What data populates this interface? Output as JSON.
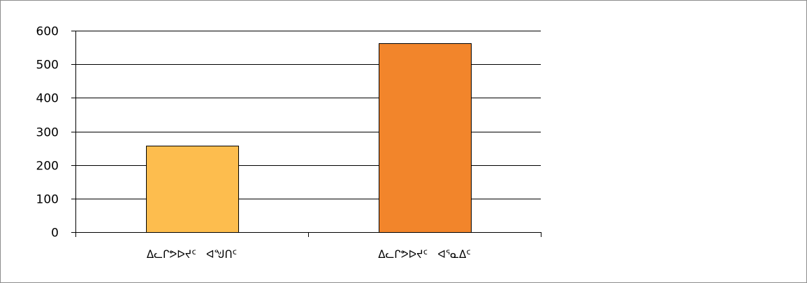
{
  "chart_data": {
    "type": "bar",
    "title": "",
    "xlabel": "",
    "ylabel": "",
    "categories": [
      "ᐃᓚᒋᕗᐅᔪᑦ ᐊᖑᑎᑦ",
      "ᐃᓚᒋᕗᐅᔪᑦ ᐊᕐᓇᐃᑦ"
    ],
    "values": [
      257,
      562
    ],
    "ylim": [
      0,
      600
    ],
    "yticks": [
      0,
      100,
      200,
      300,
      400,
      500,
      600
    ],
    "grid": true,
    "legend": "none",
    "colors": {
      "bars": [
        "#FDBD4E",
        "#F2852B"
      ],
      "bar_edge": "#000000",
      "grid": "#000000",
      "axis": "#000000"
    }
  }
}
